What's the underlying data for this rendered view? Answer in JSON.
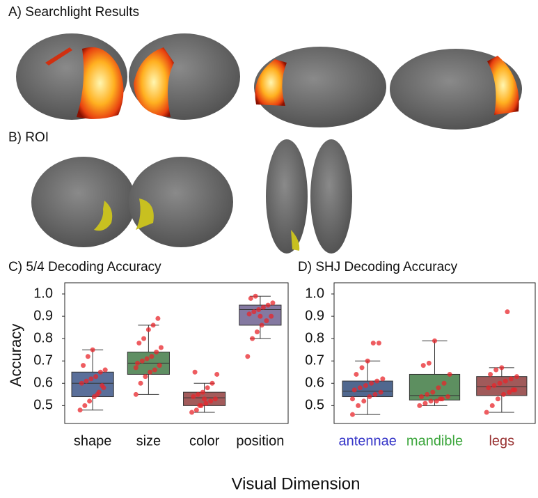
{
  "figure": {
    "panel_a_title": "A) Searchlight Results",
    "panel_b_title": "B) ROI",
    "ylabel": "Accuracy",
    "xlabel": "Visual Dimension"
  },
  "chart_data": [
    {
      "type": "box",
      "title": "C) 5/4 Decoding Accuracy",
      "categories": [
        "shape",
        "size",
        "color",
        "position"
      ],
      "colors": [
        "#5a6f9a",
        "#5f8f63",
        "#a35b5b",
        "#8479a1"
      ],
      "point_color": "#e8262b",
      "ylim": [
        0.42,
        1.05
      ],
      "yticks": [
        {
          "value": 1,
          "label": "1.0"
        },
        0.9,
        0.8,
        0.7,
        0.6,
        0.5
      ],
      "boxes": [
        {
          "whisker_low": 0.48,
          "q1": 0.54,
          "median": 0.6,
          "q3": 0.65,
          "whisker_high": 0.75
        },
        {
          "whisker_low": 0.55,
          "q1": 0.64,
          "median": 0.69,
          "q3": 0.74,
          "whisker_high": 0.86
        },
        {
          "whisker_low": 0.47,
          "q1": 0.5,
          "median": 0.535,
          "q3": 0.56,
          "whisker_high": 0.6
        },
        {
          "whisker_low": 0.8,
          "q1": 0.86,
          "median": 0.93,
          "q3": 0.95,
          "whisker_high": 0.99
        }
      ],
      "points": [
        [
          0.48,
          0.5,
          0.52,
          0.54,
          0.56,
          0.58,
          0.6,
          0.61,
          0.62,
          0.63,
          0.65,
          0.66,
          0.68,
          0.72,
          0.75,
          0.55,
          0.59
        ],
        [
          0.55,
          0.6,
          0.63,
          0.65,
          0.66,
          0.68,
          0.69,
          0.7,
          0.71,
          0.72,
          0.74,
          0.76,
          0.78,
          0.8,
          0.84,
          0.86,
          0.89,
          0.67
        ],
        [
          0.47,
          0.48,
          0.5,
          0.51,
          0.52,
          0.53,
          0.54,
          0.55,
          0.56,
          0.58,
          0.6,
          0.64,
          0.65,
          0.5,
          0.53
        ],
        [
          0.72,
          0.8,
          0.83,
          0.86,
          0.88,
          0.9,
          0.91,
          0.92,
          0.93,
          0.94,
          0.95,
          0.96,
          0.98,
          0.99,
          0.9
        ]
      ]
    },
    {
      "type": "box",
      "title": "D) SHJ Decoding Accuracy",
      "categories": [
        "antennae",
        "mandible",
        "legs"
      ],
      "colors": [
        "#50688f",
        "#5d8f60",
        "#a05a5a"
      ],
      "label_colors": [
        "#3535c8",
        "#3aa53a",
        "#993333"
      ],
      "point_color": "#e8262b",
      "ylim": [
        0.42,
        1.05
      ],
      "yticks": [
        {
          "value": 1,
          "label": "1.0"
        },
        0.9,
        0.8,
        0.7,
        0.6,
        0.5
      ],
      "boxes": [
        {
          "whisker_low": 0.46,
          "q1": 0.54,
          "median": 0.565,
          "q3": 0.61,
          "whisker_high": 0.7
        },
        {
          "whisker_low": 0.5,
          "q1": 0.525,
          "median": 0.545,
          "q3": 0.64,
          "whisker_high": 0.79
        },
        {
          "whisker_low": 0.47,
          "q1": 0.545,
          "median": 0.585,
          "q3": 0.63,
          "whisker_high": 0.67
        }
      ],
      "points": [
        [
          0.46,
          0.5,
          0.52,
          0.54,
          0.55,
          0.56,
          0.57,
          0.58,
          0.59,
          0.6,
          0.61,
          0.62,
          0.64,
          0.67,
          0.7,
          0.78,
          0.78,
          0.53
        ],
        [
          0.5,
          0.51,
          0.52,
          0.52,
          0.53,
          0.54,
          0.54,
          0.55,
          0.56,
          0.58,
          0.6,
          0.64,
          0.68,
          0.69,
          0.79,
          0.53
        ],
        [
          0.47,
          0.5,
          0.53,
          0.55,
          0.56,
          0.57,
          0.58,
          0.59,
          0.6,
          0.61,
          0.62,
          0.63,
          0.64,
          0.66,
          0.67,
          0.92,
          0.57
        ]
      ]
    }
  ]
}
